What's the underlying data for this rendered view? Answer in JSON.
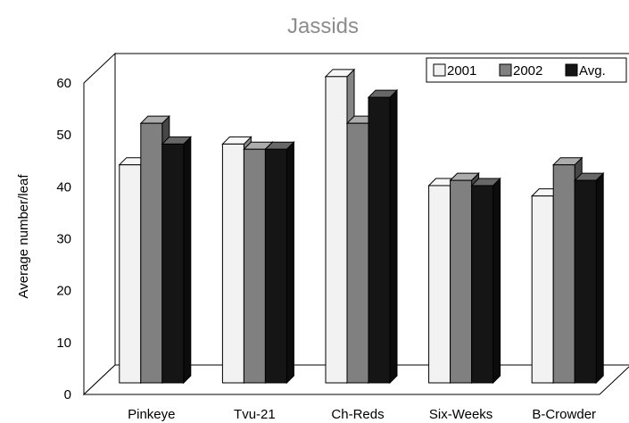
{
  "chart_data": {
    "type": "bar",
    "title": "Jassids",
    "xlabel": "",
    "ylabel": "Average number/leaf",
    "categories": [
      "Pinkeye",
      "Tvu-21",
      "Ch-Reds",
      "Six-Weeks",
      "B-Crowder"
    ],
    "series": [
      {
        "name": "2001",
        "values": [
          42,
          46,
          59,
          38,
          36
        ],
        "color": "#f2f2f2"
      },
      {
        "name": "2002",
        "values": [
          50,
          45,
          50,
          39,
          42
        ],
        "color": "#808080"
      },
      {
        "name": "Avg.",
        "values": [
          46,
          45,
          55,
          38,
          39
        ],
        "color": "#151515"
      }
    ],
    "ylim": [
      0,
      60
    ],
    "yticks": [
      "0",
      "10",
      "20",
      "30",
      "40",
      "50",
      "60"
    ],
    "legend_position": "top-right",
    "grid": false,
    "style": "3d"
  }
}
